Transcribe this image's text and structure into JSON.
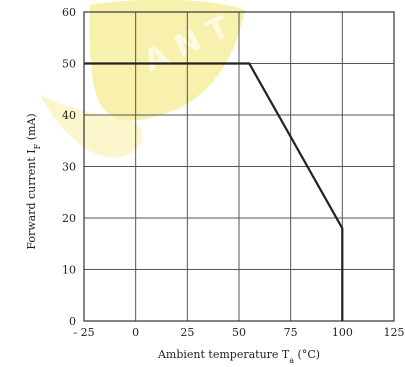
{
  "chart_data": {
    "type": "line",
    "title": "",
    "xlabel": "Ambient temperature T",
    "xlabel_sub": "a",
    "xlabel_unit": " (°C)",
    "ylabel": "Forward current I",
    "ylabel_sub": "F",
    "ylabel_unit": " (mA)",
    "xlim": [
      -25,
      125
    ],
    "ylim": [
      0,
      60
    ],
    "x_ticks": [
      -25,
      0,
      25,
      50,
      75,
      100,
      125
    ],
    "x_tick_labels": [
      "- 25",
      "0",
      "25",
      "50",
      "75",
      "100",
      "125"
    ],
    "y_ticks": [
      0,
      10,
      20,
      30,
      40,
      50,
      60
    ],
    "y_tick_labels": [
      "0",
      "10",
      "20",
      "30",
      "40",
      "50",
      "60"
    ],
    "grid": true,
    "series": [
      {
        "x": [
          -25,
          55,
          100,
          100
        ],
        "y": [
          50,
          50,
          18,
          0
        ]
      }
    ]
  },
  "watermark": {
    "color": "#f7eea0",
    "letters": "A N T"
  }
}
